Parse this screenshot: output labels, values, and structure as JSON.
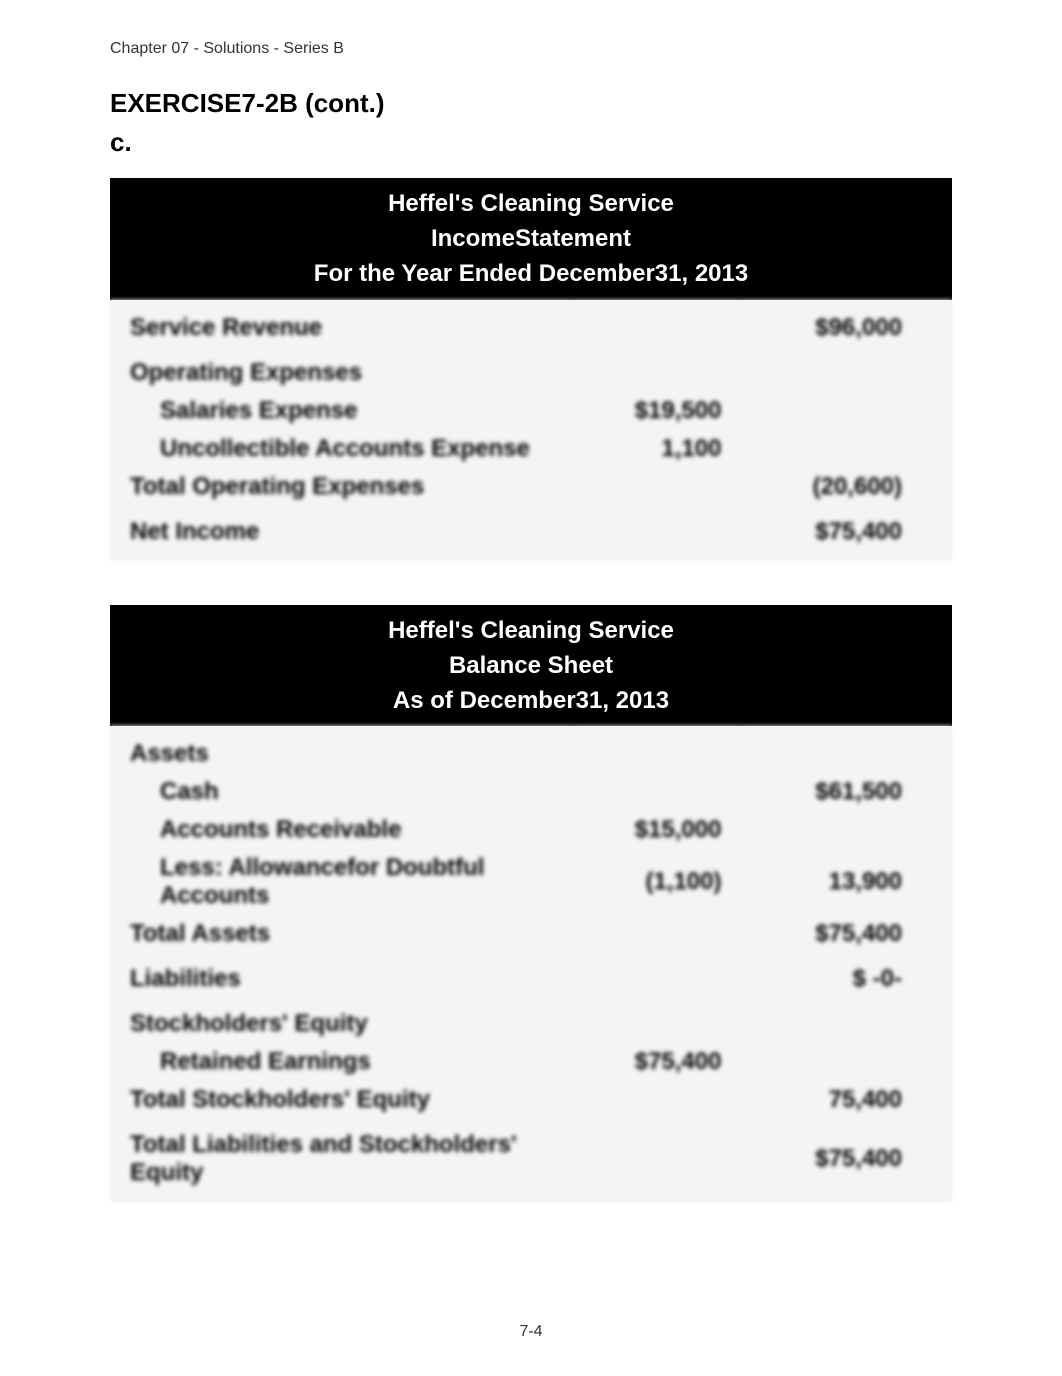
{
  "page_header": "Chapter 07 - Solutions - Series B",
  "exercise_title": "EXERCISE7-2B (cont.)",
  "section_letter": "c.",
  "income_statement": {
    "header_line1": "Heffel's Cleaning Service",
    "header_line2": "IncomeStatement",
    "header_line3": "For the Year Ended December31, 2013",
    "rows": {
      "service_revenue_label": "Service Revenue",
      "service_revenue_value": "$96,000",
      "operating_expenses_label": "Operating Expenses",
      "salaries_expense_label": "Salaries Expense",
      "salaries_expense_value": "$19,500",
      "uncollectible_label": "Uncollectible Accounts Expense",
      "uncollectible_value": "1,100",
      "total_op_expenses_label": "Total Operating Expenses",
      "total_op_expenses_value": "(20,600)",
      "net_income_label": "Net Income",
      "net_income_value": "$75,400"
    }
  },
  "balance_sheet": {
    "header_line1": "Heffel's Cleaning Service",
    "header_line2": "Balance Sheet",
    "header_line3": "As of December31, 2013",
    "rows": {
      "assets_label": "Assets",
      "cash_label": "Cash",
      "cash_value": "$61,500",
      "ar_label": "Accounts Receivable",
      "ar_value": "$15,000",
      "allowance_label": "Less: Allowancefor Doubtful Accounts",
      "allowance_col1": "(1,100)",
      "allowance_col2": "13,900",
      "total_assets_label": "Total Assets",
      "total_assets_value": "$75,400",
      "liabilities_label": "Liabilities",
      "liabilities_value": "$    -0-",
      "se_label": "Stockholders' Equity",
      "retained_label": "Retained Earnings",
      "retained_value": "$75,400",
      "total_se_label": "Total Stockholders' Equity",
      "total_se_value": "75,400",
      "total_liab_se_label": "Total Liabilities and Stockholders' Equity",
      "total_liab_se_value": "$75,400"
    }
  },
  "page_number": "7-4",
  "colors": {
    "header_bg": "#000000",
    "header_text": "#ffffff",
    "body_bg": "#ffffff",
    "table_bg": "#f4f4f4",
    "text_color": "#000000"
  }
}
